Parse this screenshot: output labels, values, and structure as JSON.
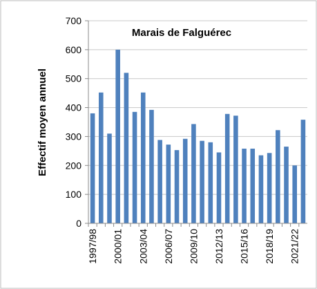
{
  "chart_data": {
    "type": "bar",
    "title": "Marais de Falguérec",
    "y_label": "Effectif moyen annuel",
    "categories": [
      "1997/98",
      null,
      null,
      "2000/01",
      null,
      null,
      "2003/04",
      null,
      null,
      "2006/07",
      null,
      null,
      "2009/10",
      null,
      null,
      "2012/13",
      null,
      null,
      "2015/16",
      null,
      null,
      "2018/19",
      null,
      null,
      "2021/22",
      null
    ],
    "values": [
      380,
      452,
      310,
      600,
      520,
      385,
      452,
      392,
      288,
      272,
      253,
      292,
      343,
      285,
      280,
      245,
      378,
      372,
      258,
      258,
      235,
      243,
      322,
      265,
      200,
      358
    ],
    "color": "#4f81bd",
    "ylim": [
      0,
      700
    ],
    "yticks": [
      0,
      100,
      200,
      300,
      400,
      500,
      600,
      700
    ],
    "grid": true
  }
}
